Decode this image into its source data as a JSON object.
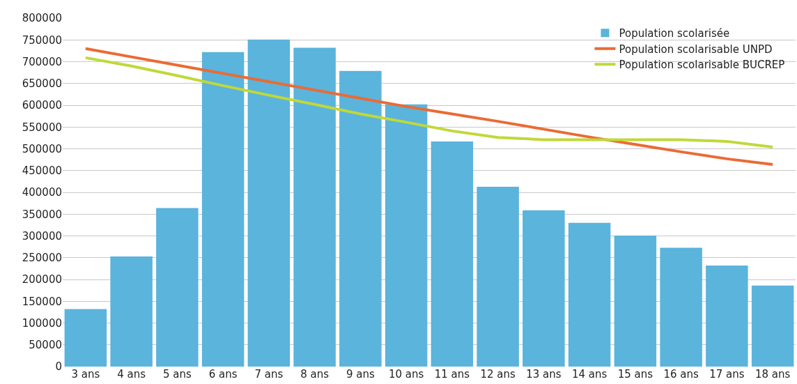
{
  "chart_data": {
    "type": "bar",
    "categories": [
      "3 ans",
      "4 ans",
      "5 ans",
      "6 ans",
      "7 ans",
      "8 ans",
      "9 ans",
      "10 ans",
      "11 ans",
      "12 ans",
      "13 ans",
      "14 ans",
      "15 ans",
      "16 ans",
      "17 ans",
      "18 ans"
    ],
    "series": [
      {
        "name": "Population scolarisée",
        "color": "#5ab4dc",
        "values": [
          132000,
          253000,
          364000,
          722000,
          751000,
          732000,
          679000,
          602000,
          517000,
          413000,
          359000,
          330000,
          301000,
          273000,
          232000,
          186000
        ]
      },
      {
        "name": "Population scolarisable UNPD",
        "color": "#ea6b34",
        "type": "line",
        "values": [
          730000,
          711000,
          692000,
          673000,
          654000,
          635000,
          616000,
          597000,
          580000,
          563000,
          545000,
          527000,
          510000,
          493000,
          477000,
          464000
        ]
      },
      {
        "name": "Population scolarisable BUCREP",
        "color": "#c1d83a",
        "type": "line",
        "values": [
          709000,
          690000,
          668000,
          645000,
          623000,
          602000,
          580000,
          561000,
          541000,
          526000,
          521000,
          521000,
          521000,
          521000,
          517000,
          504000
        ]
      }
    ],
    "ylim": [
      0,
      800000
    ],
    "yticks": [
      0,
      50000,
      100000,
      150000,
      200000,
      250000,
      300000,
      350000,
      400000,
      450000,
      500000,
      550000,
      600000,
      650000,
      700000,
      750000,
      800000
    ],
    "grid": "y",
    "legend": "top right",
    "marker": "none",
    "line_style": "solid"
  }
}
